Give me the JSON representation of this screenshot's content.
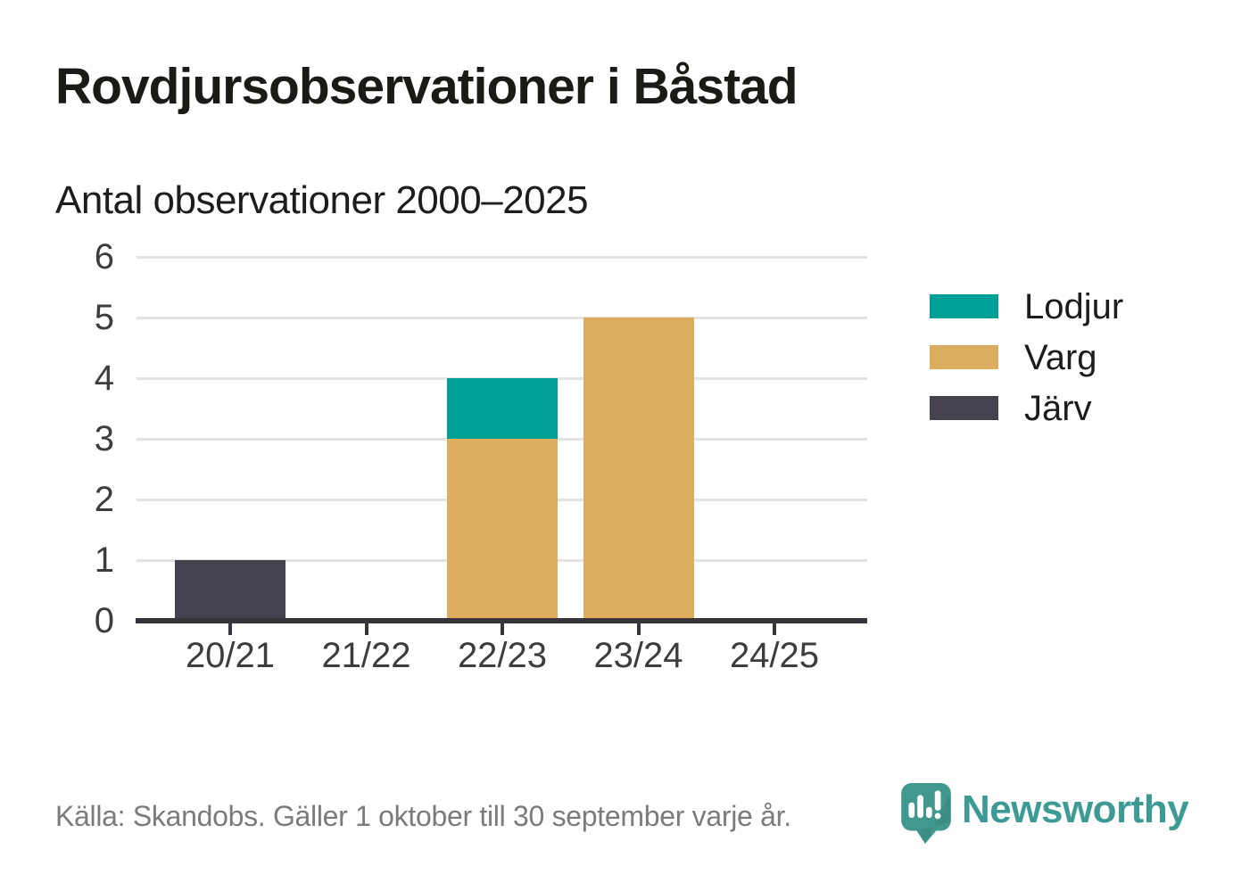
{
  "header": {
    "title": "Rovdjursobservationer i Båstad",
    "subtitle": "Antal observationer 2000–2025"
  },
  "chart_data": {
    "type": "bar",
    "stacked": true,
    "title": "Rovdjursobservationer i Båstad",
    "subtitle": "Antal observationer 2000–2025",
    "categories": [
      "20/21",
      "21/22",
      "22/23",
      "23/24",
      "24/25"
    ],
    "series": [
      {
        "name": "Lodjur",
        "color": "#00a099",
        "values": [
          0,
          0,
          1,
          0,
          0
        ]
      },
      {
        "name": "Varg",
        "color": "#dbad5c",
        "values": [
          0,
          0,
          3,
          5,
          0
        ]
      },
      {
        "name": "Järv",
        "color": "#45414e",
        "values": [
          1,
          0,
          0,
          0,
          0
        ]
      }
    ],
    "stack_order_bottom_to_top": [
      "Järv",
      "Varg",
      "Lodjur"
    ],
    "totals_by_category": [
      1,
      0,
      4,
      5,
      0
    ],
    "xlabel": "",
    "ylabel": "",
    "ylim": [
      0,
      6
    ],
    "yticks": [
      0,
      1,
      2,
      3,
      4,
      5,
      6
    ],
    "grid": true,
    "legend_position": "right"
  },
  "legend": {
    "items": [
      {
        "label": "Lodjur",
        "color": "#00a099"
      },
      {
        "label": "Varg",
        "color": "#dbad5c"
      },
      {
        "label": "Järv",
        "color": "#45414e"
      }
    ]
  },
  "footer": {
    "source": "Källa: Skandobs. Gäller 1 oktober till 30 september varje år.",
    "brand_name": "Newsworthy",
    "brand_icon": "speech-bubble-bar-chart-icon",
    "brand_color": "#3d9a94"
  },
  "colors": {
    "background": "#ffffff",
    "title_text": "#1a1a17",
    "axis": "#38343c",
    "axis_labels": "#3d3d3d",
    "gridline": "#e3e3e3",
    "source_text": "#7b7b7b",
    "lodjur": "#00a099",
    "varg": "#dbad5c",
    "jarv": "#45414e",
    "brand_teal": "#3d9a94"
  }
}
